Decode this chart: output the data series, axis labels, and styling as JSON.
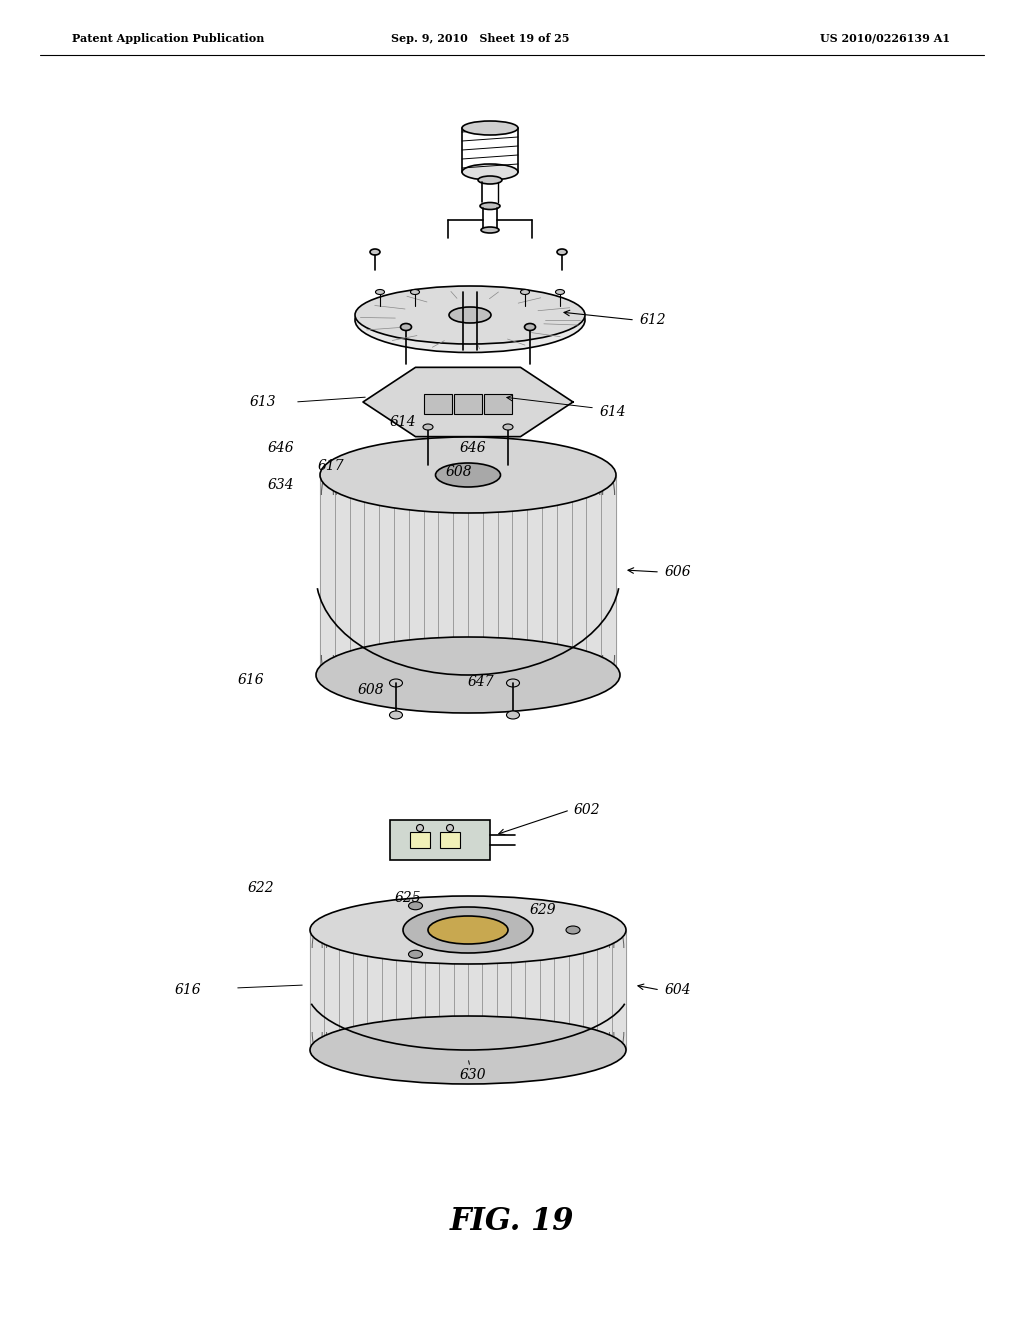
{
  "title_left": "Patent Application Publication",
  "title_mid": "Sep. 9, 2010   Sheet 19 of 25",
  "title_right": "US 2010/0226139 A1",
  "fig_label": "FIG. 19",
  "bg_color": "#ffffff",
  "line_color": "#000000"
}
